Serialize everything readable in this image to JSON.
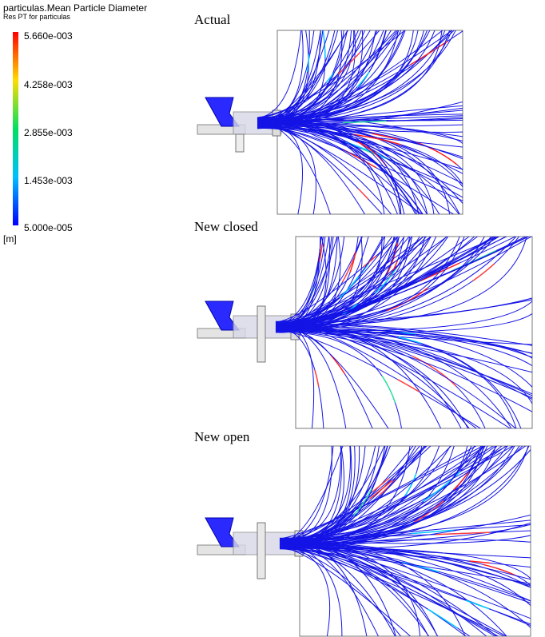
{
  "legend": {
    "title": "particulas.Mean Particle Diameter",
    "subtitle": "Res PT for particulas",
    "ticks": [
      "5.660e-003",
      "4.258e-003",
      "2.855e-003",
      "1.453e-003",
      "5.000e-005"
    ],
    "unit": "[m]"
  },
  "panels": [
    {
      "label": "Actual"
    },
    {
      "label": "New closed"
    },
    {
      "label": "New open"
    }
  ]
}
